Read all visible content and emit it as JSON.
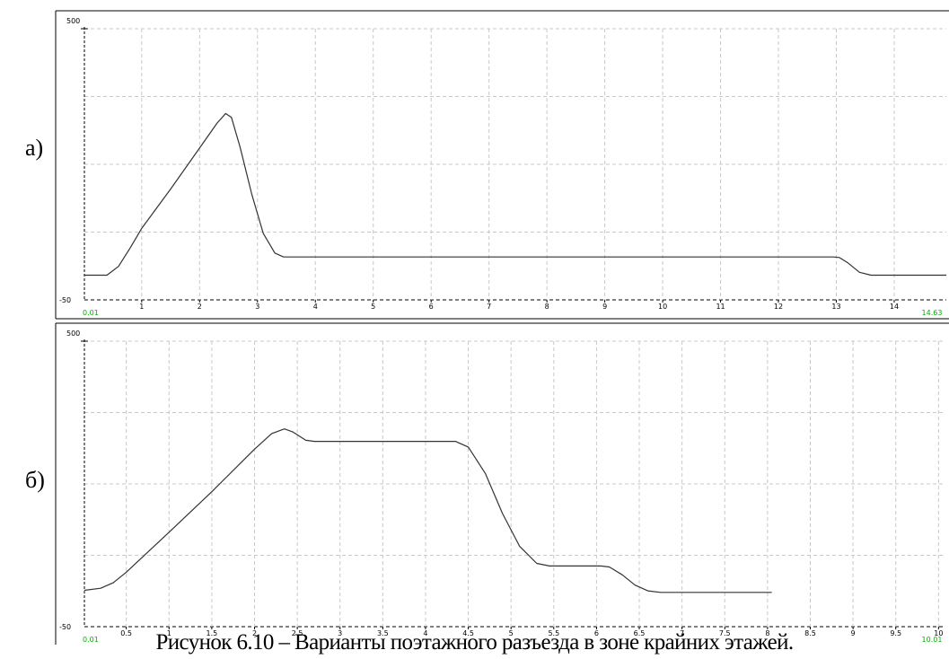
{
  "caption": "Рисунок 6.10 – Варианты поэтажного разъезда в зоне крайних этажей.",
  "chart_data": [
    {
      "type": "line",
      "panel_label": "а)",
      "ylim": [
        -50,
        500
      ],
      "y_ticks": [
        "500",
        "-50"
      ],
      "x_start_label": "0.01",
      "x_end_label": "14.63",
      "xlim": [
        0.01,
        14.9
      ],
      "x_ticks": [
        "1",
        "2",
        "3",
        "4",
        "5",
        "6",
        "7",
        "8",
        "9",
        "10",
        "11",
        "12",
        "13",
        "14"
      ],
      "x_tick_values": [
        1,
        2,
        3,
        4,
        5,
        6,
        7,
        8,
        9,
        10,
        11,
        12,
        13,
        14
      ],
      "series": [
        {
          "x": [
            0.01,
            0.4,
            0.6,
            0.8,
            1.0,
            1.5,
            2.0,
            2.3,
            2.45,
            2.55,
            2.7,
            2.9,
            3.1,
            3.3,
            3.45,
            5,
            8,
            11,
            12.95,
            13.05,
            13.2,
            13.4,
            13.6,
            14.9
          ],
          "y": [
            0,
            0,
            18,
            55,
            95,
            175,
            258,
            308,
            328,
            320,
            260,
            165,
            85,
            45,
            37,
            37,
            37,
            37,
            37,
            36,
            25,
            6,
            0,
            0
          ]
        }
      ]
    },
    {
      "type": "line",
      "panel_label": "б)",
      "ylim": [
        -50,
        500
      ],
      "y_ticks": [
        "500",
        "-50"
      ],
      "x_start_label": "0.01",
      "x_end_label": "10.01",
      "xlim": [
        0.01,
        10.07
      ],
      "x_ticks": [
        "0.5",
        "1",
        "1.5",
        "2",
        "2.5",
        "3",
        "3.5",
        "4",
        "4.5",
        "5",
        "5.5",
        "6",
        "6.5",
        "7",
        "7.5",
        "8",
        "8.5",
        "9",
        "9.5",
        "10"
      ],
      "x_tick_values": [
        0.5,
        1,
        1.5,
        2,
        2.5,
        3,
        3.5,
        4,
        4.5,
        5,
        5.5,
        6,
        6.5,
        7,
        7.5,
        8,
        8.5,
        9,
        9.5,
        10
      ],
      "series": [
        {
          "x": [
            0.01,
            0.2,
            0.35,
            0.5,
            1.0,
            1.5,
            2.0,
            2.2,
            2.35,
            2.45,
            2.6,
            2.7,
            3.5,
            4.35,
            4.5,
            4.7,
            4.9,
            5.1,
            5.3,
            5.45,
            6.05,
            6.15,
            6.3,
            6.45,
            6.6,
            6.75,
            8.05
          ],
          "y": [
            20,
            24,
            35,
            55,
            132,
            210,
            292,
            322,
            331,
            325,
            309,
            307,
            307,
            307,
            296,
            245,
            168,
            105,
            72,
            67,
            67,
            65,
            50,
            30,
            19,
            16,
            16
          ]
        }
      ]
    }
  ]
}
